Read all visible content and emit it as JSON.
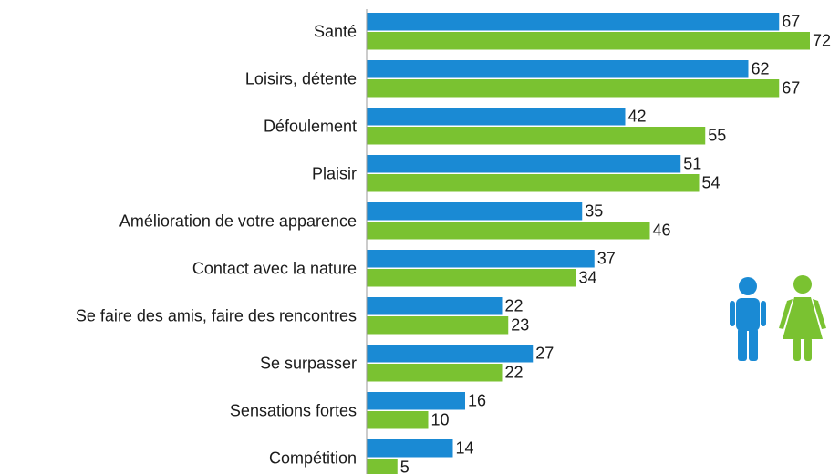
{
  "chart_data": {
    "type": "bar",
    "orientation": "horizontal",
    "categories": [
      "Santé",
      "Loisirs, détente",
      "Défoulement",
      "Plaisir",
      "Amélioration de votre apparence",
      "Contact avec la nature",
      "Se faire des amis, faire des rencontres",
      "Se surpasser",
      "Sensations fortes",
      "Compétition"
    ],
    "series": [
      {
        "color": "#1a8ad4",
        "values": [
          67,
          62,
          42,
          51,
          35,
          37,
          22,
          27,
          16,
          14
        ]
      },
      {
        "color": "#7ac231",
        "values": [
          72,
          67,
          55,
          54,
          46,
          34,
          23,
          22,
          10,
          5
        ]
      }
    ]
  }
}
